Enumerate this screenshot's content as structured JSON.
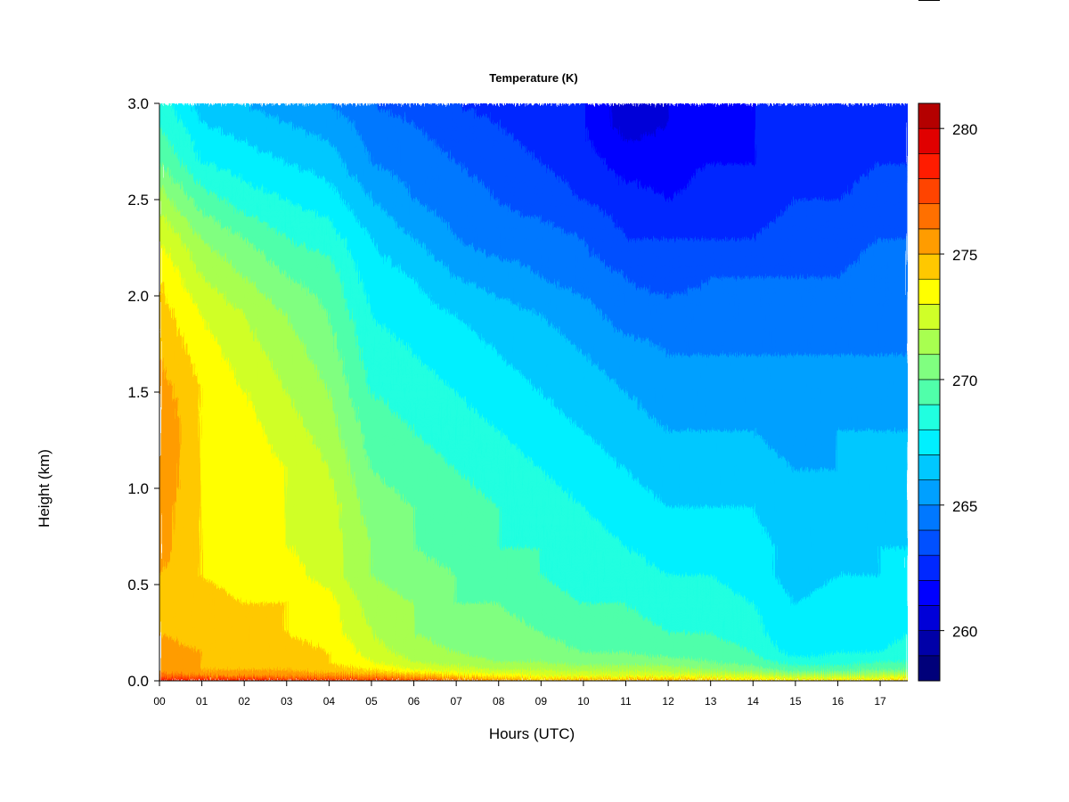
{
  "chart_data": {
    "type": "heatmap",
    "title": "Temperature (K)",
    "xlabel": "Hours (UTC)",
    "ylabel": "Height (km)",
    "xlim": [
      0,
      17.65
    ],
    "ylim": [
      0.0,
      3.0
    ],
    "x_ticks": [
      {
        "value": 0,
        "label": "00"
      },
      {
        "value": 1,
        "label": "01"
      },
      {
        "value": 2,
        "label": "02"
      },
      {
        "value": 3,
        "label": "03"
      },
      {
        "value": 4,
        "label": "04"
      },
      {
        "value": 5,
        "label": "05"
      },
      {
        "value": 6,
        "label": "06"
      },
      {
        "value": 7,
        "label": "07"
      },
      {
        "value": 8,
        "label": "08"
      },
      {
        "value": 9,
        "label": "09"
      },
      {
        "value": 10,
        "label": "10"
      },
      {
        "value": 11,
        "label": "11"
      },
      {
        "value": 12,
        "label": "12"
      },
      {
        "value": 13,
        "label": "13"
      },
      {
        "value": 14,
        "label": "14"
      },
      {
        "value": 15,
        "label": "15"
      },
      {
        "value": 16,
        "label": "16"
      },
      {
        "value": 17,
        "label": "17"
      }
    ],
    "y_ticks": [
      {
        "value": 0.0,
        "label": "0.0"
      },
      {
        "value": 0.5,
        "label": "0.5"
      },
      {
        "value": 1.0,
        "label": "1.0"
      },
      {
        "value": 1.5,
        "label": "1.5"
      },
      {
        "value": 2.0,
        "label": "2.0"
      },
      {
        "value": 2.5,
        "label": "2.5"
      },
      {
        "value": 3.0,
        "label": "3.0"
      }
    ],
    "colorbar": {
      "range": [
        258,
        281
      ],
      "step": 1,
      "ticks": [
        {
          "value": 260,
          "label": "260"
        },
        {
          "value": 265,
          "label": "265"
        },
        {
          "value": 270,
          "label": "270"
        },
        {
          "value": 275,
          "label": "275"
        },
        {
          "value": 280,
          "label": "280"
        }
      ],
      "colors": [
        "#00007a",
        "#0000a8",
        "#0000d8",
        "#0000ff",
        "#0028ff",
        "#0050ff",
        "#0078ff",
        "#00a0ff",
        "#00c8ff",
        "#00f0ff",
        "#20ffe0",
        "#50ffaa",
        "#80ff80",
        "#a8ff50",
        "#d0ff28",
        "#ffff00",
        "#ffc800",
        "#ff9c00",
        "#ff7000",
        "#ff4400",
        "#ff1c00",
        "#e00000",
        "#b40000",
        "#820000"
      ]
    },
    "height_km": [
      0.0,
      0.03,
      0.06,
      0.1,
      0.15,
      0.25,
      0.4,
      0.55,
      0.7,
      0.9,
      1.1,
      1.3,
      1.5,
      1.7,
      1.9,
      2.1,
      2.3,
      2.5,
      2.7,
      2.9,
      3.0
    ],
    "hours_utc": [
      0,
      1,
      2,
      3,
      4,
      5,
      6,
      7,
      8,
      9,
      10,
      11,
      12,
      13,
      14,
      15,
      16,
      17,
      17.65
    ],
    "temperature_K": [
      [
        279.0,
        276.5,
        275.5,
        275.5,
        275.5,
        275.0,
        275.0,
        275.0,
        275.5,
        275.5,
        276.0,
        276.0,
        275.5,
        275.0,
        274.5,
        274.0,
        273.0,
        271.5,
        270.0,
        269.0,
        268.5
      ],
      [
        279.0,
        276.0,
        275.0,
        275.0,
        275.0,
        274.5,
        274.5,
        274.0,
        274.0,
        274.0,
        274.0,
        274.0,
        274.0,
        273.5,
        273.0,
        272.0,
        271.0,
        269.5,
        268.0,
        267.0,
        266.5
      ],
      [
        279.0,
        276.0,
        275.0,
        274.5,
        274.5,
        274.5,
        274.0,
        273.5,
        273.5,
        273.5,
        273.5,
        273.5,
        273.0,
        272.5,
        272.0,
        271.0,
        270.0,
        268.5,
        267.5,
        266.5,
        266.0
      ],
      [
        278.5,
        275.5,
        275.0,
        274.5,
        274.5,
        274.0,
        274.0,
        273.5,
        273.0,
        273.0,
        273.0,
        272.5,
        272.0,
        271.5,
        271.0,
        270.0,
        269.0,
        268.0,
        267.0,
        266.0,
        265.5
      ],
      [
        278.5,
        275.5,
        274.5,
        274.0,
        274.0,
        273.5,
        273.5,
        272.5,
        272.5,
        272.5,
        272.0,
        271.5,
        271.0,
        270.5,
        270.0,
        269.5,
        268.5,
        267.5,
        266.5,
        265.5,
        265.0
      ],
      [
        278.5,
        275.5,
        274.0,
        273.0,
        272.5,
        272.0,
        271.5,
        271.0,
        271.0,
        270.5,
        270.0,
        269.5,
        269.0,
        268.5,
        268.0,
        267.5,
        267.0,
        266.0,
        265.0,
        264.5,
        264.0
      ],
      [
        277.5,
        275.0,
        273.0,
        272.0,
        271.5,
        271.0,
        271.0,
        270.5,
        270.0,
        270.0,
        269.5,
        269.0,
        268.5,
        268.0,
        267.5,
        267.0,
        266.0,
        265.0,
        264.5,
        264.0,
        263.5
      ],
      [
        277.0,
        274.0,
        272.5,
        271.5,
        271.0,
        270.5,
        270.0,
        270.0,
        269.5,
        269.5,
        269.0,
        268.5,
        268.0,
        267.5,
        267.0,
        266.0,
        265.0,
        264.5,
        264.0,
        263.5,
        263.0
      ],
      [
        276.0,
        273.5,
        272.0,
        271.0,
        270.5,
        270.5,
        270.0,
        269.5,
        269.0,
        269.0,
        268.5,
        268.0,
        267.5,
        267.0,
        266.5,
        265.5,
        264.5,
        264.0,
        263.5,
        263.0,
        262.5
      ],
      [
        275.0,
        273.0,
        272.0,
        271.0,
        270.5,
        270.0,
        269.5,
        269.0,
        269.0,
        268.5,
        268.0,
        267.5,
        267.0,
        266.5,
        266.0,
        265.0,
        264.5,
        263.5,
        263.0,
        262.5,
        262.0
      ],
      [
        275.5,
        273.0,
        271.5,
        270.5,
        270.0,
        269.5,
        269.0,
        268.5,
        268.5,
        268.0,
        267.5,
        267.0,
        266.5,
        266.0,
        265.5,
        264.5,
        264.0,
        263.0,
        262.5,
        262.0,
        262.0
      ],
      [
        275.5,
        273.0,
        271.5,
        270.5,
        270.0,
        269.5,
        269.0,
        268.5,
        268.0,
        267.5,
        267.0,
        266.5,
        266.0,
        265.5,
        264.5,
        264.0,
        263.0,
        262.5,
        261.5,
        260.5,
        260.5
      ],
      [
        275.5,
        273.0,
        271.5,
        270.5,
        269.5,
        269.0,
        268.5,
        268.0,
        267.5,
        267.0,
        266.5,
        266.0,
        265.5,
        265.0,
        264.5,
        263.5,
        263.0,
        262.0,
        261.5,
        261.0,
        261.0
      ],
      [
        275.0,
        272.5,
        271.0,
        270.0,
        269.5,
        269.0,
        268.5,
        268.0,
        267.5,
        267.0,
        266.5,
        266.0,
        265.5,
        265.0,
        264.5,
        264.0,
        263.0,
        262.5,
        262.0,
        261.5,
        261.5
      ],
      [
        274.5,
        272.5,
        270.5,
        269.5,
        269.0,
        268.5,
        268.0,
        267.5,
        267.5,
        267.0,
        266.5,
        266.0,
        265.5,
        265.0,
        264.5,
        264.0,
        263.0,
        262.5,
        262.0,
        262.0,
        262.0
      ],
      [
        274.5,
        271.5,
        269.5,
        268.5,
        267.5,
        267.0,
        267.0,
        266.5,
        266.5,
        266.0,
        266.0,
        265.5,
        265.5,
        265.0,
        264.5,
        264.0,
        263.5,
        263.0,
        262.5,
        262.0,
        262.0
      ],
      [
        274.5,
        271.5,
        269.5,
        268.5,
        268.0,
        267.5,
        267.5,
        267.0,
        266.5,
        266.5,
        266.0,
        266.0,
        265.5,
        265.0,
        264.5,
        264.0,
        263.5,
        263.0,
        262.5,
        262.0,
        262.0
      ],
      [
        274.5,
        272.0,
        270.0,
        269.0,
        268.0,
        267.5,
        267.5,
        267.0,
        267.0,
        266.5,
        266.0,
        266.0,
        265.5,
        265.0,
        264.5,
        264.5,
        264.0,
        263.5,
        263.0,
        262.5,
        262.5
      ],
      [
        275.0,
        272.5,
        270.0,
        269.0,
        268.5,
        268.0,
        267.5,
        267.0,
        267.0,
        266.5,
        266.5,
        266.0,
        265.5,
        265.0,
        265.0,
        264.5,
        264.0,
        263.5,
        263.0,
        263.0,
        263.0
      ]
    ]
  }
}
